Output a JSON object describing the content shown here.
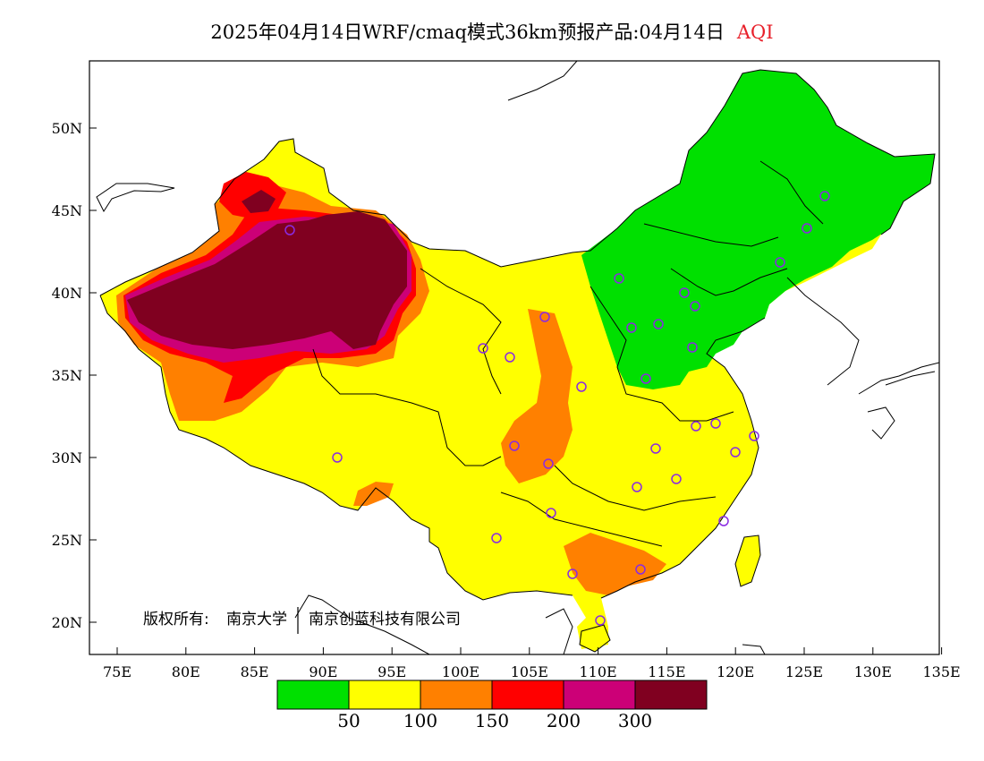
{
  "title": {
    "main": "2025年04月14日WRF/cmaq模式36km预报产品:04月14日",
    "variable": "AQI"
  },
  "axes": {
    "y_ticks": [
      "50N",
      "45N",
      "40N",
      "35N",
      "30N",
      "25N",
      "20N"
    ],
    "x_ticks": [
      "75E",
      "80E",
      "85E",
      "90E",
      "95E",
      "100E",
      "105E",
      "110E",
      "115E",
      "120E",
      "125E",
      "130E",
      "135E"
    ]
  },
  "copyright": {
    "label": "版权所有:",
    "org1": "南京大学",
    "org2": "南京创蓝科技有限公司"
  },
  "legend": {
    "colors": [
      "#00e000",
      "#ffff00",
      "#ff8000",
      "#ff0000",
      "#cc0077",
      "#800020"
    ],
    "labels": [
      "50",
      "100",
      "150",
      "200",
      "300"
    ]
  },
  "colors": {
    "good": "#00e000",
    "moderate": "#ffff00",
    "usg": "#ff8000",
    "unhealthy": "#ff0000",
    "very_unhealthy": "#cc0077",
    "hazardous": "#800020",
    "station_marker": "#8a2be2"
  }
}
